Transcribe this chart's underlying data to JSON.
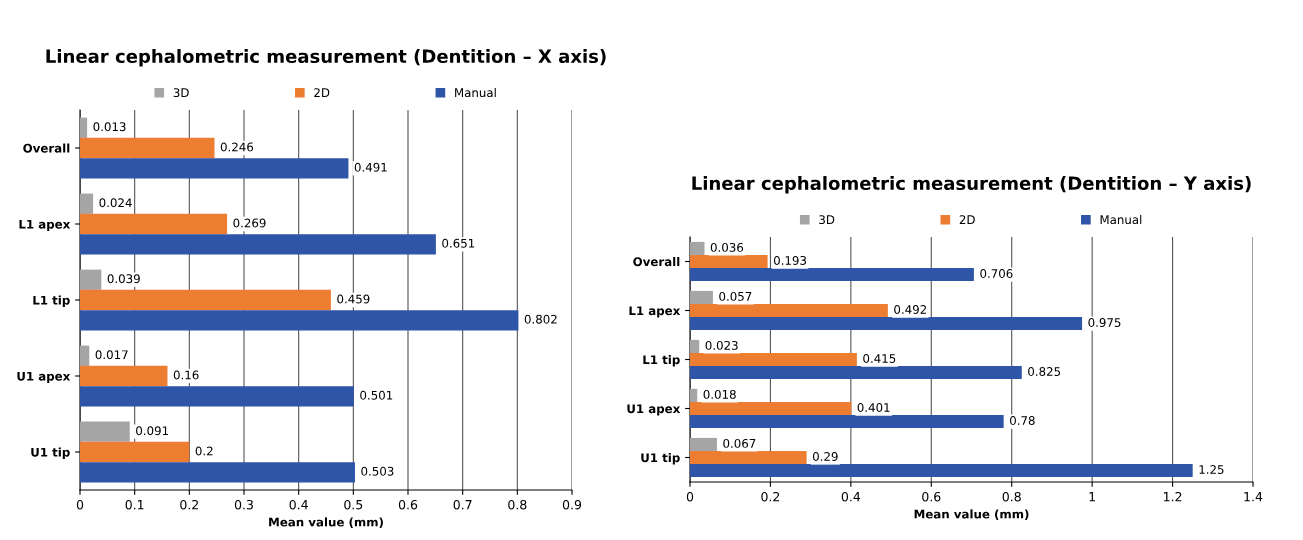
{
  "chart_data": [
    {
      "type": "bar",
      "orientation": "horizontal",
      "title": "Linear cephalometric measurement (Dentition – X axis)",
      "xlabel": "Mean value (mm)",
      "categories": [
        "Overall",
        "L1 apex",
        "L1 tip",
        "U1 apex",
        "U1 tip"
      ],
      "series": [
        {
          "name": "3D",
          "color": "#a5a5a5",
          "values": [
            0.013,
            0.024,
            0.039,
            0.017,
            0.091
          ]
        },
        {
          "name": "2D",
          "color": "#ed7d31",
          "values": [
            0.246,
            0.269,
            0.459,
            0.16,
            0.2
          ]
        },
        {
          "name": "Manual",
          "color": "#2f55a8",
          "values": [
            0.491,
            0.651,
            0.802,
            0.501,
            0.503
          ]
        }
      ],
      "xlim": [
        0,
        0.9
      ],
      "xticks": [
        0,
        0.1,
        0.2,
        0.3,
        0.4,
        0.5,
        0.6,
        0.7,
        0.8,
        0.9
      ],
      "grid": "x",
      "legend": "top",
      "data_labels": true
    },
    {
      "type": "bar",
      "orientation": "horizontal",
      "title": "Linear cephalometric measurement (Dentition – Y axis)",
      "xlabel": "Mean value (mm)",
      "categories": [
        "Overall",
        "L1 apex",
        "L1 tip",
        "U1 apex",
        "U1 tip"
      ],
      "series": [
        {
          "name": "3D",
          "color": "#a5a5a5",
          "values": [
            0.036,
            0.057,
            0.023,
            0.018,
            0.067
          ]
        },
        {
          "name": "2D",
          "color": "#ed7d31",
          "values": [
            0.193,
            0.492,
            0.415,
            0.401,
            0.29
          ]
        },
        {
          "name": "Manual",
          "color": "#2f55a8",
          "values": [
            0.706,
            0.975,
            0.825,
            0.78,
            1.25
          ]
        }
      ],
      "xlim": [
        0,
        1.4
      ],
      "xticks": [
        0,
        0.2,
        0.4,
        0.6,
        0.8,
        1,
        1.2,
        1.4
      ],
      "grid": "x",
      "legend": "top",
      "data_labels": true
    }
  ]
}
